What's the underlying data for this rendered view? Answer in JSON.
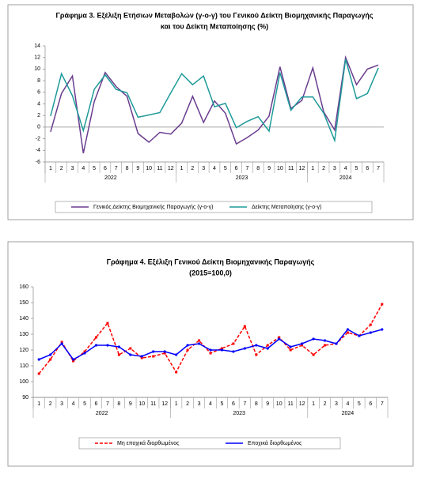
{
  "chart_data": [
    {
      "type": "line",
      "title": [
        "Γράφημα 3. Εξέλιξη Ετήσιων Μεταβολών (γ-ο-γ) του Γενικού Δείκτη Βιομηχανικής Παραγωγής",
        "και του Δείκτη Μεταποίησης (%)"
      ],
      "categories": [
        "1",
        "2",
        "3",
        "4",
        "5",
        "6",
        "7",
        "8",
        "9",
        "10",
        "11",
        "12",
        "1",
        "2",
        "3",
        "4",
        "5",
        "6",
        "7",
        "8",
        "9",
        "10",
        "11",
        "12",
        "1",
        "2",
        "3",
        "4",
        "5",
        "6",
        "7"
      ],
      "years": [
        "2022",
        "2023",
        "2024"
      ],
      "ylim": [
        -6,
        14
      ],
      "yticks": [
        -6,
        -4,
        -2,
        0,
        2,
        4,
        6,
        8,
        10,
        12,
        14
      ],
      "grid": false,
      "series": [
        {
          "name": "Γενικός Δείκτης Βιομηχανικής Παραγωγής (γ-ο-γ)",
          "color": "#6a3d8f",
          "dashed": false,
          "marker": "none",
          "values": [
            -0.8,
            5.8,
            8.8,
            -4.5,
            4.4,
            9.4,
            7.0,
            5.3,
            -1.1,
            -2.6,
            -0.9,
            -1.2,
            0.7,
            5.3,
            0.8,
            4.5,
            2.4,
            -2.9,
            -1.8,
            -0.5,
            1.9,
            10.4,
            3.2,
            4.6,
            10.2,
            2.6,
            -0.5,
            12.0,
            7.3,
            10.0,
            10.7
          ]
        },
        {
          "name": "Δείκτης Μεταποίησης (γ-ο-γ)",
          "color": "#1e9a9a",
          "dashed": false,
          "marker": "none",
          "values": [
            1.9,
            9.2,
            5.4,
            -0.6,
            6.5,
            9.0,
            6.5,
            5.9,
            1.7,
            2.1,
            2.5,
            5.9,
            9.2,
            7.3,
            8.8,
            3.5,
            4.1,
            -0.1,
            1.0,
            1.8,
            -0.7,
            9.4,
            2.9,
            5.2,
            5.2,
            2.4,
            -2.3,
            11.7,
            4.9,
            5.8,
            10.2
          ]
        }
      ]
    },
    {
      "type": "line",
      "title": [
        "Γράφημα 4. Εξέλιξη Γενικού Δείκτη Βιομηχανικής Παραγωγής",
        "(2015=100,0)"
      ],
      "categories": [
        "1",
        "2",
        "3",
        "4",
        "5",
        "6",
        "7",
        "8",
        "9",
        "10",
        "11",
        "12",
        "1",
        "2",
        "3",
        "4",
        "5",
        "6",
        "7",
        "8",
        "9",
        "10",
        "11",
        "12",
        "1",
        "2",
        "3",
        "4",
        "5",
        "6",
        "7"
      ],
      "years": [
        "2022",
        "2023",
        "2024"
      ],
      "ylim": [
        90,
        160
      ],
      "yticks": [
        90,
        100,
        110,
        120,
        130,
        140,
        150,
        160
      ],
      "grid": false,
      "series": [
        {
          "name": "Μη εποχικά διορθωμένος",
          "color": "#ff0000",
          "dashed": true,
          "marker": "square",
          "values": [
            105,
            114,
            125,
            113,
            119,
            128,
            137,
            117,
            121,
            115,
            116,
            118,
            106,
            120,
            126,
            118,
            121,
            124,
            135,
            117,
            123,
            128,
            120,
            123,
            117,
            123,
            124,
            131,
            129,
            136,
            149
          ]
        },
        {
          "name": "Εποχικά διορθωμένος",
          "color": "#0000ff",
          "dashed": false,
          "marker": "circle",
          "values": [
            114,
            117,
            124,
            114,
            118,
            123,
            123,
            122,
            117,
            116,
            119,
            119,
            117,
            123,
            124,
            120,
            120,
            119,
            121,
            123,
            121,
            127,
            122,
            124,
            127,
            126,
            124,
            133,
            129,
            131,
            133
          ]
        }
      ]
    }
  ]
}
